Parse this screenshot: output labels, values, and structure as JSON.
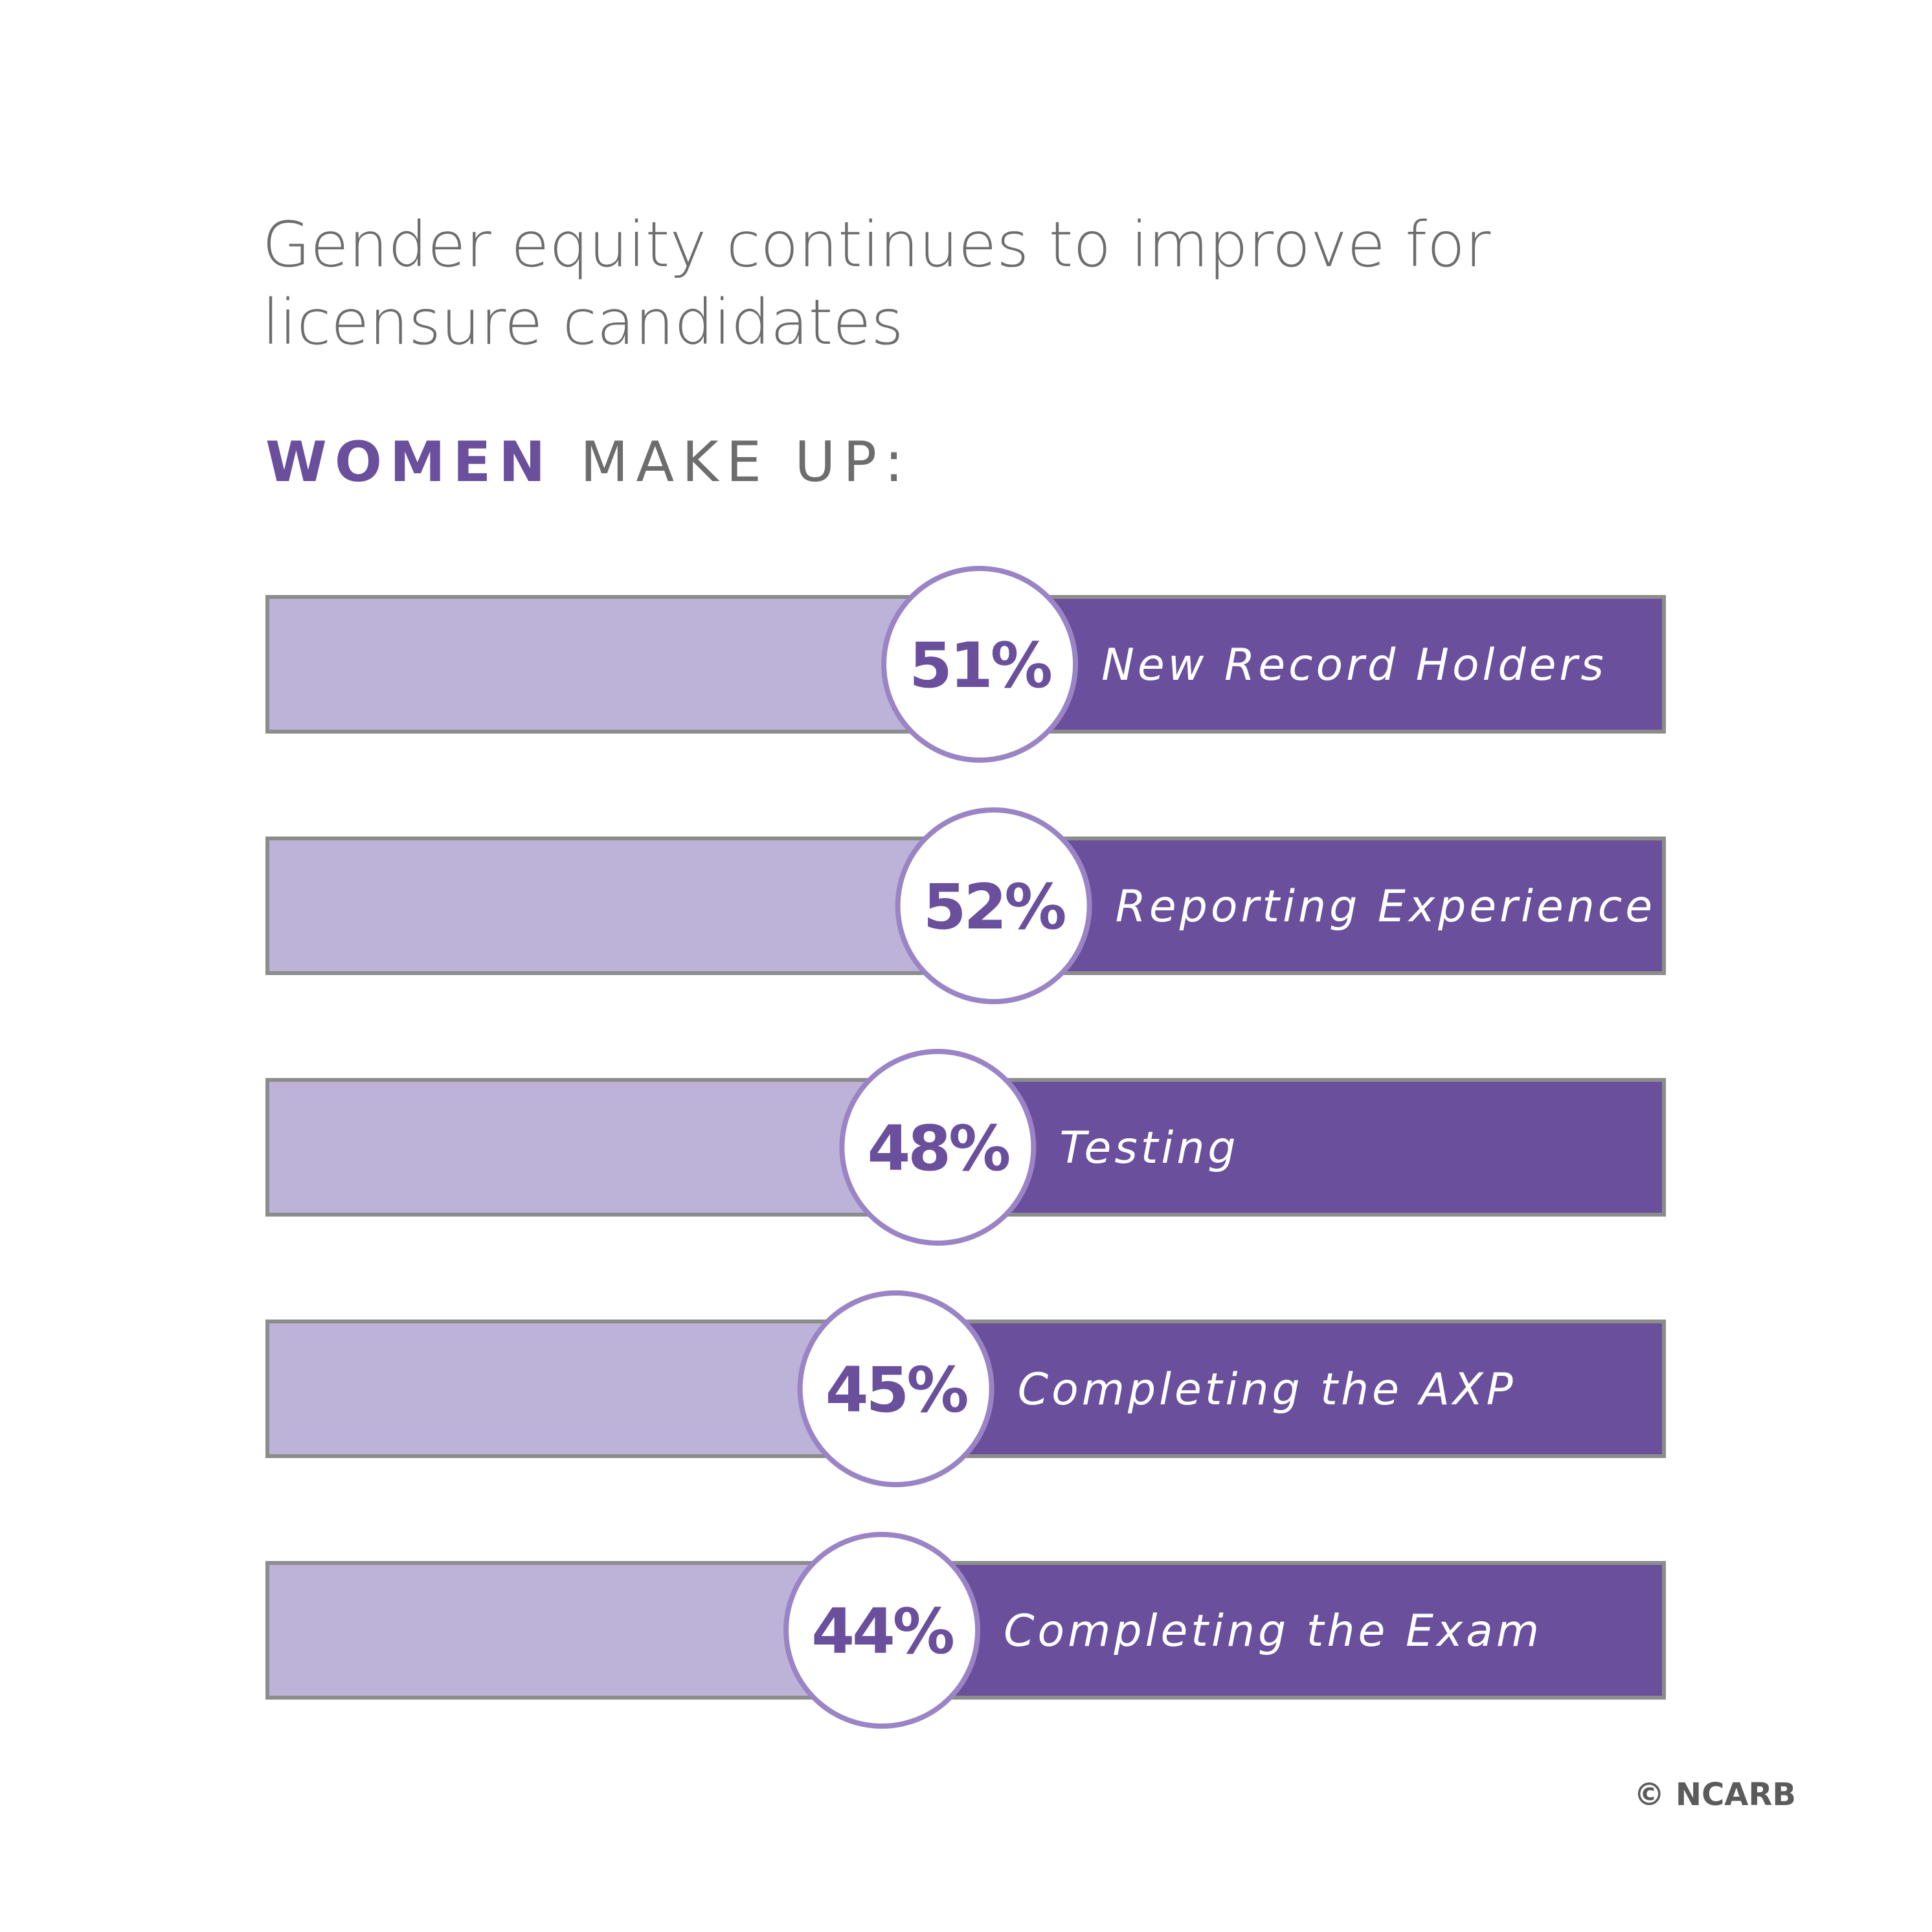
{
  "title": "Gender equity continues to improve for licensure candidates",
  "subheading": {
    "accent": "WOMEN",
    "rest": "MAKE UP:"
  },
  "credit": "© NCARB",
  "colors": {
    "women": "#6a4f9c",
    "remainder": "#bdb3d9",
    "circle_border": "#9a84c5",
    "bar_border": "#8c8c8c",
    "text_gray": "#6d6d6d"
  },
  "chart_data": {
    "type": "bar",
    "orientation": "horizontal",
    "stacked": true,
    "categories": [
      "New Record Holders",
      "Reporting Experience",
      "Testing",
      "Completing the AXP",
      "Completing the Exam"
    ],
    "values": [
      51,
      52,
      48,
      45,
      44
    ],
    "value_labels": [
      "51%",
      "52%",
      "48%",
      "45%",
      "44%"
    ],
    "unit": "%",
    "xlim": [
      0,
      100
    ],
    "grid": false,
    "legend": "none"
  }
}
